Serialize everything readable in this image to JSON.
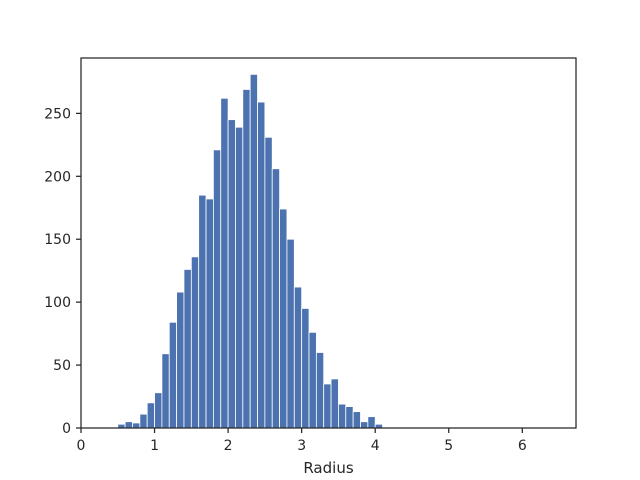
{
  "chart_data": {
    "type": "bar",
    "subtype": "histogram",
    "title": "",
    "xlabel": "Radius",
    "ylabel": "",
    "xlim": [
      0,
      6.73
    ],
    "ylim": [
      0,
      294
    ],
    "xticks": [
      0,
      1,
      2,
      3,
      4,
      5,
      6
    ],
    "yticks": [
      0,
      50,
      100,
      150,
      200,
      250
    ],
    "bin_width": 0.1,
    "bin_start": 0.5,
    "bar_color": "#4c72b0",
    "edge_color": "#ffffff",
    "grid": false,
    "values": [
      3,
      5,
      4,
      11,
      20,
      28,
      59,
      84,
      108,
      126,
      136,
      185,
      182,
      221,
      262,
      245,
      239,
      269,
      281,
      259,
      231,
      206,
      174,
      150,
      112,
      95,
      76,
      60,
      35,
      39,
      19,
      17,
      13,
      5,
      9,
      3
    ]
  }
}
